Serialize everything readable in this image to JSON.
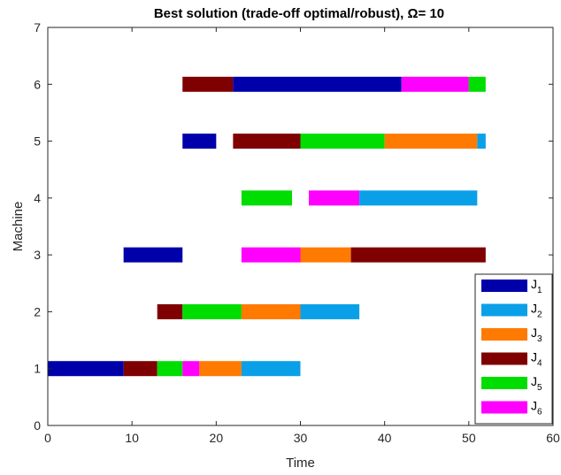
{
  "chart_data": {
    "type": "gantt",
    "title": "Best solution (trade-off optimal/robust), Ω= 10",
    "xlabel": "Time",
    "ylabel": "Machine",
    "xlim": [
      0,
      60
    ],
    "ylim": [
      0,
      7
    ],
    "xticks": [
      "0",
      "10",
      "20",
      "30",
      "40",
      "50",
      "60"
    ],
    "yticks": [
      "0",
      "1",
      "2",
      "3",
      "4",
      "5",
      "6",
      "7"
    ],
    "legend_position": "bottom-right",
    "jobs": [
      {
        "name": "J",
        "sub": "1",
        "color": "#0000aa"
      },
      {
        "name": "J",
        "sub": "2",
        "color": "#0aa0e8"
      },
      {
        "name": "J",
        "sub": "3",
        "color": "#ff7a00"
      },
      {
        "name": "J",
        "sub": "4",
        "color": "#7f0000"
      },
      {
        "name": "J",
        "sub": "5",
        "color": "#00dd00"
      },
      {
        "name": "J",
        "sub": "6",
        "color": "#ff00ff"
      }
    ],
    "operations": [
      {
        "machine": 1,
        "job": 1,
        "start": 0,
        "end": 9
      },
      {
        "machine": 1,
        "job": 4,
        "start": 9,
        "end": 13
      },
      {
        "machine": 1,
        "job": 5,
        "start": 13,
        "end": 16
      },
      {
        "machine": 1,
        "job": 6,
        "start": 16,
        "end": 18
      },
      {
        "machine": 1,
        "job": 3,
        "start": 18,
        "end": 23
      },
      {
        "machine": 1,
        "job": 2,
        "start": 23,
        "end": 30
      },
      {
        "machine": 2,
        "job": 4,
        "start": 13,
        "end": 16
      },
      {
        "machine": 2,
        "job": 5,
        "start": 16,
        "end": 23
      },
      {
        "machine": 2,
        "job": 3,
        "start": 23,
        "end": 30
      },
      {
        "machine": 2,
        "job": 2,
        "start": 30,
        "end": 37
      },
      {
        "machine": 3,
        "job": 1,
        "start": 9,
        "end": 16
      },
      {
        "machine": 3,
        "job": 6,
        "start": 23,
        "end": 30
      },
      {
        "machine": 3,
        "job": 3,
        "start": 30,
        "end": 36
      },
      {
        "machine": 3,
        "job": 4,
        "start": 36,
        "end": 52
      },
      {
        "machine": 4,
        "job": 5,
        "start": 23,
        "end": 29
      },
      {
        "machine": 4,
        "job": 6,
        "start": 31,
        "end": 37
      },
      {
        "machine": 4,
        "job": 2,
        "start": 37,
        "end": 51
      },
      {
        "machine": 5,
        "job": 1,
        "start": 16,
        "end": 20
      },
      {
        "machine": 5,
        "job": 4,
        "start": 22,
        "end": 30
      },
      {
        "machine": 5,
        "job": 5,
        "start": 30,
        "end": 40
      },
      {
        "machine": 5,
        "job": 3,
        "start": 40,
        "end": 51
      },
      {
        "machine": 5,
        "job": 2,
        "start": 51,
        "end": 52
      },
      {
        "machine": 6,
        "job": 4,
        "start": 16,
        "end": 22
      },
      {
        "machine": 6,
        "job": 1,
        "start": 22,
        "end": 42
      },
      {
        "machine": 6,
        "job": 6,
        "start": 42,
        "end": 50
      },
      {
        "machine": 6,
        "job": 5,
        "start": 50,
        "end": 52
      }
    ]
  }
}
